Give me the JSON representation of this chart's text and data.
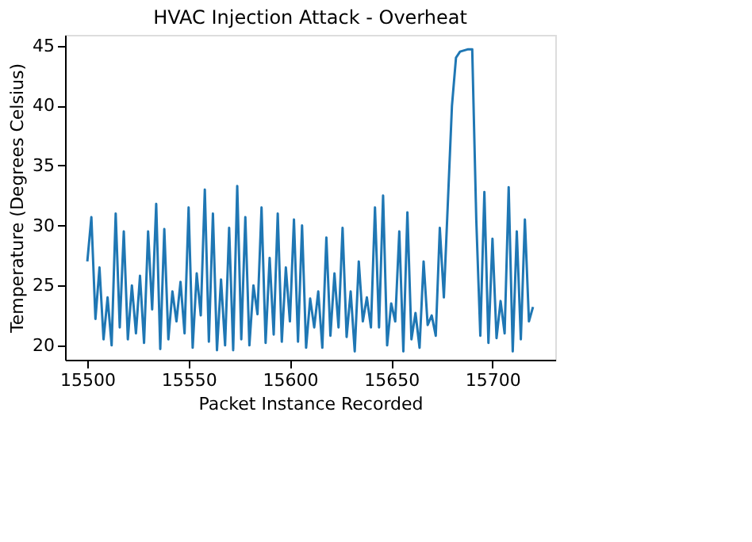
{
  "chart_data": {
    "type": "line",
    "title": "HVAC Injection Attack - Overheat",
    "xlabel": "Packet Instance Recorded",
    "ylabel": "Temperature (Degrees Celsius)",
    "x": [
      15500,
      15502,
      15504,
      15506,
      15508,
      15510,
      15512,
      15514,
      15516,
      15518,
      15520,
      15522,
      15524,
      15526,
      15528,
      15530,
      15532,
      15534,
      15536,
      15538,
      15540,
      15542,
      15544,
      15546,
      15548,
      15550,
      15552,
      15554,
      15556,
      15558,
      15560,
      15562,
      15564,
      15566,
      15568,
      15570,
      15572,
      15574,
      15576,
      15578,
      15580,
      15582,
      15584,
      15586,
      15588,
      15590,
      15592,
      15594,
      15596,
      15598,
      15600,
      15602,
      15604,
      15606,
      15608,
      15610,
      15612,
      15614,
      15616,
      15618,
      15620,
      15622,
      15624,
      15626,
      15628,
      15630,
      15632,
      15634,
      15636,
      15638,
      15640,
      15642,
      15644,
      15646,
      15648,
      15650,
      15652,
      15654,
      15656,
      15658,
      15660,
      15662,
      15664,
      15666,
      15668,
      15670,
      15672,
      15674,
      15676,
      15678,
      15680,
      15682,
      15684,
      15686,
      15688,
      15690,
      15692,
      15694,
      15696,
      15698,
      15700,
      15702,
      15704,
      15706,
      15708,
      15710,
      15712,
      15714,
      15716,
      15718,
      15720
    ],
    "values": [
      27,
      30.7,
      22.2,
      26.5,
      20.5,
      24,
      20,
      31,
      21.5,
      29.5,
      20.5,
      25,
      21,
      25.8,
      20.2,
      29.5,
      23,
      31.8,
      19.7,
      29.7,
      20.5,
      24.5,
      22,
      25.3,
      21,
      31.5,
      19.8,
      26,
      22.5,
      33,
      20.3,
      31,
      19.6,
      25.5,
      20,
      29.8,
      19.6,
      33.3,
      20.5,
      30.7,
      20,
      25,
      22.6,
      31.5,
      20.2,
      27.3,
      20.9,
      31,
      20.3,
      26.5,
      22,
      30.5,
      20.3,
      30,
      19.8,
      23.9,
      21.5,
      24.5,
      19.8,
      29,
      20.8,
      26,
      21.5,
      29.8,
      20.7,
      24.5,
      19.5,
      27,
      22,
      24,
      21.5,
      31.5,
      21.5,
      32.5,
      20,
      23.5,
      22,
      29.5,
      19.5,
      31.1,
      20.5,
      22.7,
      19.8,
      27,
      21.7,
      22.5,
      20.8,
      29.8,
      24,
      32,
      40,
      44,
      44.5,
      44.6,
      44.7,
      44.7,
      30.5,
      20.8,
      32.8,
      20.2,
      28.9,
      20.6,
      23.7,
      21,
      33.2,
      19.5,
      29.5,
      20.5,
      30.5,
      22,
      23.2
    ],
    "color": "#1f77b4",
    "xlim": [
      15489,
      15731
    ],
    "ylim": [
      18.8,
      45.9
    ],
    "xticks": [
      15500,
      15550,
      15600,
      15650,
      15700
    ],
    "yticks": [
      20,
      25,
      30,
      35,
      40,
      45
    ],
    "grid": false
  }
}
